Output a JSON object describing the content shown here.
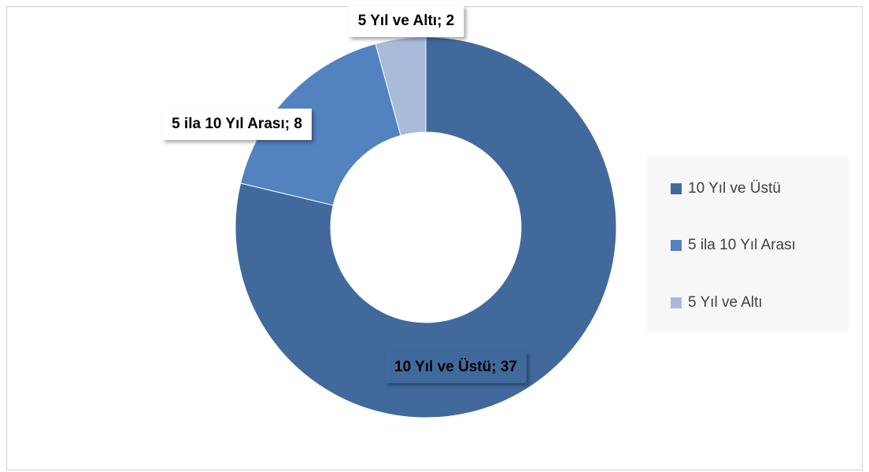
{
  "chart_data": {
    "type": "donut",
    "categories": [
      "10 Yıl ve Üstü",
      "5 ila 10 Yıl Arası",
      "5 Yıl ve Altı"
    ],
    "values": [
      37,
      8,
      2
    ],
    "value_labels": [
      "10 Yıl ve Üstü; 37",
      "5 ila 10 Yıl Arası; 8",
      "5 Yıl ve Altı; 2"
    ],
    "colors": [
      "#41699c",
      "#5282c0",
      "#a9badb"
    ],
    "legend": "right"
  }
}
